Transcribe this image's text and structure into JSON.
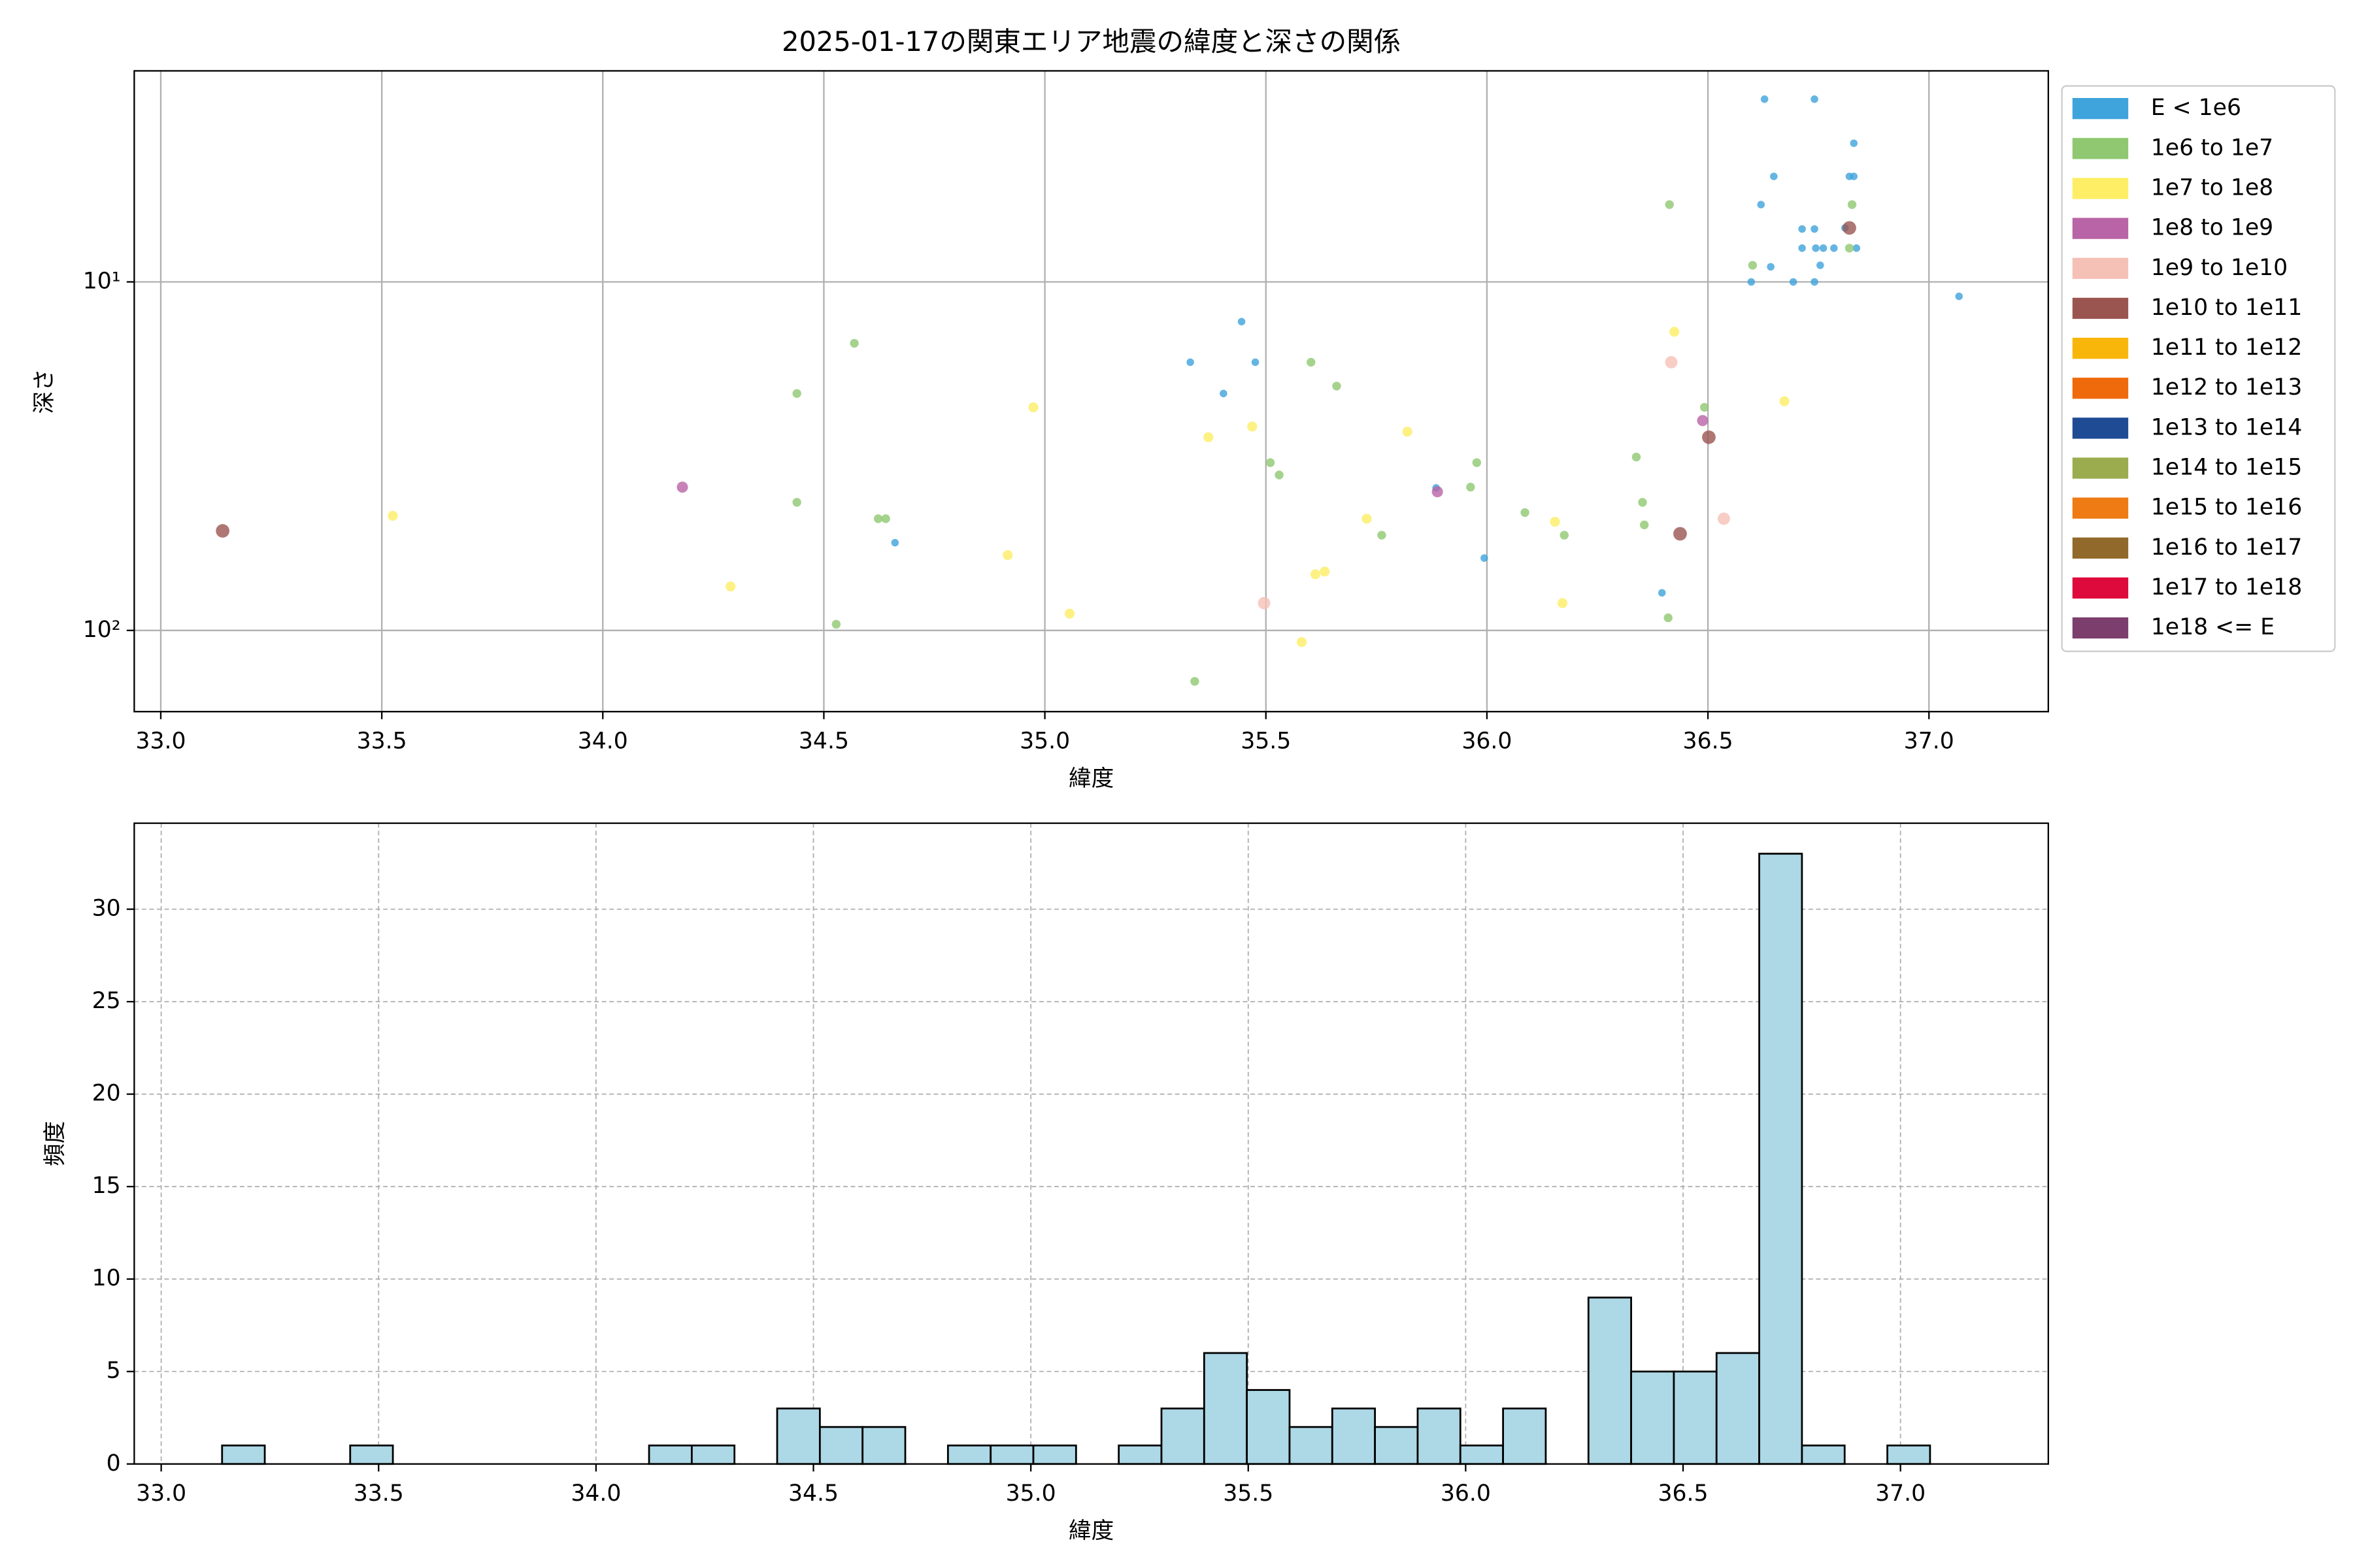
{
  "chart_data": [
    {
      "type": "scatter",
      "title": "2025-01-17の関東エリア地震の緯度と深さの関係",
      "xlabel": "緯度",
      "ylabel": "深さ",
      "xlim": [
        32.94,
        37.27
      ],
      "ylim": [
        2.48,
        171
      ],
      "yscale": "log",
      "invert_y": true,
      "grid": true,
      "legend": "right",
      "xticks": [
        {
          "value": 33,
          "label": "33.0"
        },
        {
          "value": 33.5,
          "label": "33.5"
        },
        {
          "value": 34,
          "label": "34.0"
        },
        {
          "value": 34.5,
          "label": "34.5"
        },
        {
          "value": 35,
          "label": "35.0"
        },
        {
          "value": 35.5,
          "label": "35.5"
        },
        {
          "value": 36,
          "label": "36.0"
        },
        {
          "value": 36.5,
          "label": "36.5"
        },
        {
          "value": 37,
          "label": "37.0"
        }
      ],
      "yticks": [
        {
          "value": 10,
          "label": "10¹"
        },
        {
          "value": 100,
          "label": "10²"
        }
      ],
      "series": [
        {
          "name": "E < 1e6",
          "color": "#3fa3dc",
          "x": [
            36.628,
            36.741,
            36.83,
            36.649,
            36.82,
            36.83,
            36.62,
            36.713,
            36.741,
            36.81,
            36.713,
            36.744,
            36.761,
            36.785,
            36.836,
            36.754,
            36.642,
            36.598,
            36.693,
            36.741,
            37.068,
            35.445,
            35.329,
            35.476,
            35.404,
            34.661,
            35.994,
            36.396,
            35.885
          ],
          "values": [
            2.99,
            2.99,
            4.0,
            4.98,
            4.98,
            4.98,
            6.0,
            7.05,
            7.05,
            7.0,
            8.0,
            8.0,
            8.0,
            8.0,
            8.0,
            8.96,
            9.05,
            10,
            10,
            10,
            11.0,
            13.0,
            17.0,
            17.0,
            20.9,
            56,
            62,
            78,
            39
          ]
        },
        {
          "name": "1e6 to 1e7",
          "color": "#8fc870",
          "x": [
            36.413,
            36.601,
            36.82,
            36.826,
            34.569,
            35.602,
            35.66,
            34.439,
            36.492,
            36.338,
            35.977,
            35.51,
            35.53,
            35.963,
            34.439,
            36.352,
            34.623,
            34.64,
            36.086,
            36.356,
            35.762,
            36.175,
            34.528,
            36.41,
            35.339
          ],
          "values": [
            6.0,
            8.96,
            8.0,
            6.0,
            15.0,
            17.0,
            19.9,
            20.9,
            22.9,
            31.8,
            33,
            33,
            35.8,
            38.8,
            42.9,
            42.9,
            47.8,
            47.8,
            45.9,
            49.8,
            53.3,
            53.3,
            96,
            92,
            140
          ]
        },
        {
          "name": "1e7 to 1e8",
          "color": "#fdee65",
          "x": [
            36.424,
            36.673,
            34.974,
            35.469,
            35.37,
            35.82,
            33.525,
            35.728,
            36.154,
            34.916,
            35.612,
            35.633,
            34.289,
            36.171,
            35.056,
            35.581
          ],
          "values": [
            13.9,
            22,
            22.9,
            26,
            27.9,
            26.9,
            46.9,
            47.8,
            48.8,
            60.8,
            69,
            67.8,
            74.8,
            83.5,
            89.5,
            108
          ]
        },
        {
          "name": "1e8 to 1e9",
          "color": "#b964a6",
          "x": [
            34.18,
            35.888,
            36.488
          ],
          "values": [
            38.8,
            40,
            25
          ]
        },
        {
          "name": "1e9 to 1e10",
          "color": "#f5c0b6",
          "x": [
            36.417,
            36.536,
            35.496
          ],
          "values": [
            17.0,
            47.8,
            83.5
          ]
        },
        {
          "name": "1e10 to 1e11",
          "color": "#9a5551",
          "x": [
            33.14,
            36.437,
            36.502,
            36.82
          ],
          "values": [
            51.8,
            52.8,
            27.9,
            7.0
          ]
        },
        {
          "name": "1e11 to 1e12",
          "color": "#f9b60a",
          "x": [],
          "values": []
        },
        {
          "name": "1e12 to 1e13",
          "color": "#ef6a0b",
          "x": [],
          "values": []
        },
        {
          "name": "1e13 to 1e14",
          "color": "#1f4b94",
          "x": [],
          "values": []
        },
        {
          "name": "1e14 to 1e15",
          "color": "#9bac4e",
          "x": [],
          "values": []
        },
        {
          "name": "1e15 to 1e16",
          "color": "#ee7b14",
          "x": [],
          "values": []
        },
        {
          "name": "1e16 to 1e17",
          "color": "#91692b",
          "x": [],
          "values": []
        },
        {
          "name": "1e17 to 1e18",
          "color": "#dd0a3b",
          "x": [],
          "values": []
        },
        {
          "name": "1e18 <= E",
          "color": "#7b3e6d",
          "x": [],
          "values": []
        }
      ]
    },
    {
      "type": "histogram",
      "xlabel": "緯度",
      "ylabel": "頻度",
      "color": "#add8e6",
      "edgecolor": "#000000",
      "grid": true,
      "xlim": [
        32.938,
        37.34
      ],
      "ylim": [
        0,
        34.65
      ],
      "xticks": [
        {
          "value": 33,
          "label": "33.0"
        },
        {
          "value": 33.5,
          "label": "33.5"
        },
        {
          "value": 34,
          "label": "34.0"
        },
        {
          "value": 34.5,
          "label": "34.5"
        },
        {
          "value": 35,
          "label": "35.0"
        },
        {
          "value": 35.5,
          "label": "35.5"
        },
        {
          "value": 36,
          "label": "36.0"
        },
        {
          "value": 36.5,
          "label": "36.5"
        },
        {
          "value": 37,
          "label": "37.0"
        }
      ],
      "yticks": [
        0,
        5,
        10,
        15,
        20,
        25,
        30
      ],
      "bins": [
        33.14,
        33.2382,
        33.3364,
        33.4346,
        33.5328,
        33.631,
        33.7292,
        33.8274,
        33.9256,
        34.0238,
        34.122,
        34.2202,
        34.3184,
        34.4166,
        34.5148,
        34.613,
        34.7112,
        34.8094,
        34.9076,
        35.0058,
        35.104,
        35.2022,
        35.3004,
        35.3986,
        35.4968,
        35.595,
        35.6932,
        35.7914,
        35.8896,
        35.9878,
        36.086,
        36.1842,
        36.2824,
        36.3806,
        36.4788,
        36.577,
        36.6752,
        36.7734,
        36.8716,
        36.9698,
        37.068
      ],
      "values": [
        1,
        0,
        0,
        1,
        0,
        0,
        0,
        0,
        0,
        0,
        1,
        1,
        0,
        3,
        2,
        2,
        0,
        1,
        1,
        1,
        0,
        1,
        3,
        6,
        4,
        2,
        3,
        2,
        3,
        1,
        3,
        0,
        9,
        5,
        5,
        6,
        33,
        1,
        0,
        1
      ]
    }
  ]
}
